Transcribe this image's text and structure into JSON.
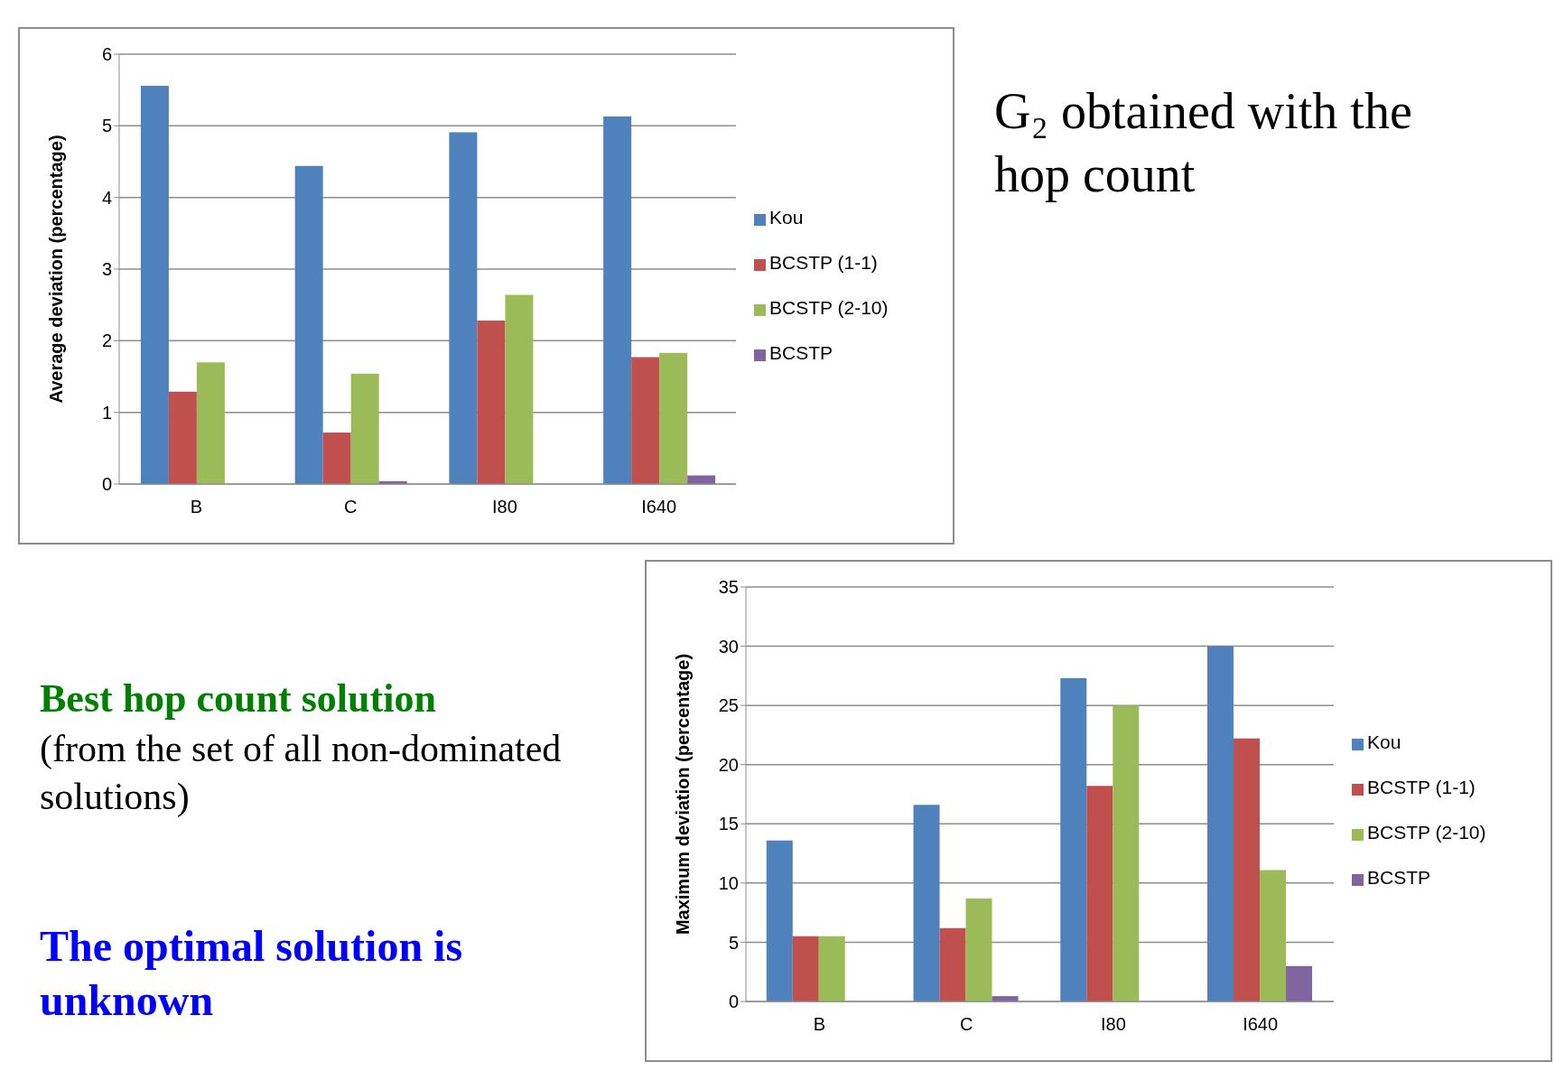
{
  "chart_data": [
    {
      "type": "bar",
      "annotations": [
        "G₂ obtained with the hop count"
      ],
      "ylabel": "Average deviation (percentage)",
      "categories": [
        "B",
        "C",
        "I80",
        "I640"
      ],
      "series": [
        {
          "name": "Kou",
          "color": "#4f81bd",
          "values": [
            5.56,
            4.44,
            4.91,
            5.13
          ]
        },
        {
          "name": "BCSTP (1-1)",
          "color": "#c0504d",
          "values": [
            1.29,
            0.72,
            2.28,
            1.77
          ]
        },
        {
          "name": "BCSTP (2-10)",
          "color": "#9bbb59",
          "values": [
            1.7,
            1.54,
            2.64,
            1.83
          ]
        },
        {
          "name": "BCSTP",
          "color": "#8064a2",
          "values": [
            0,
            0.04,
            0,
            0.12
          ]
        }
      ],
      "ylim": [
        0,
        6
      ],
      "yticks": [
        0,
        1,
        2,
        3,
        4,
        5,
        6
      ],
      "grid": "y",
      "legend": "right"
    },
    {
      "type": "bar",
      "ylabel": "Maximum deviation (percentage)",
      "categories": [
        "B",
        "C",
        "I80",
        "I640"
      ],
      "series": [
        {
          "name": "Kou",
          "color": "#4f81bd",
          "values": [
            13.6,
            16.6,
            27.3,
            30
          ]
        },
        {
          "name": "BCSTP (1-1)",
          "color": "#c0504d",
          "values": [
            5.5,
            6.2,
            18.2,
            22.2
          ]
        },
        {
          "name": "BCSTP (2-10)",
          "color": "#9bbb59",
          "values": [
            5.5,
            8.7,
            25,
            11.1
          ]
        },
        {
          "name": "BCSTP",
          "color": "#8064a2",
          "values": [
            0,
            0.45,
            0,
            3
          ]
        }
      ],
      "ylim": [
        0,
        35
      ],
      "yticks": [
        0,
        5,
        10,
        15,
        20,
        25,
        30,
        35
      ],
      "grid": "y",
      "legend": "right",
      "annotations": [
        "Best hop count solution",
        "(from the set of all non-dominated solutions)",
        "The optimal solution is unknown"
      ]
    }
  ]
}
